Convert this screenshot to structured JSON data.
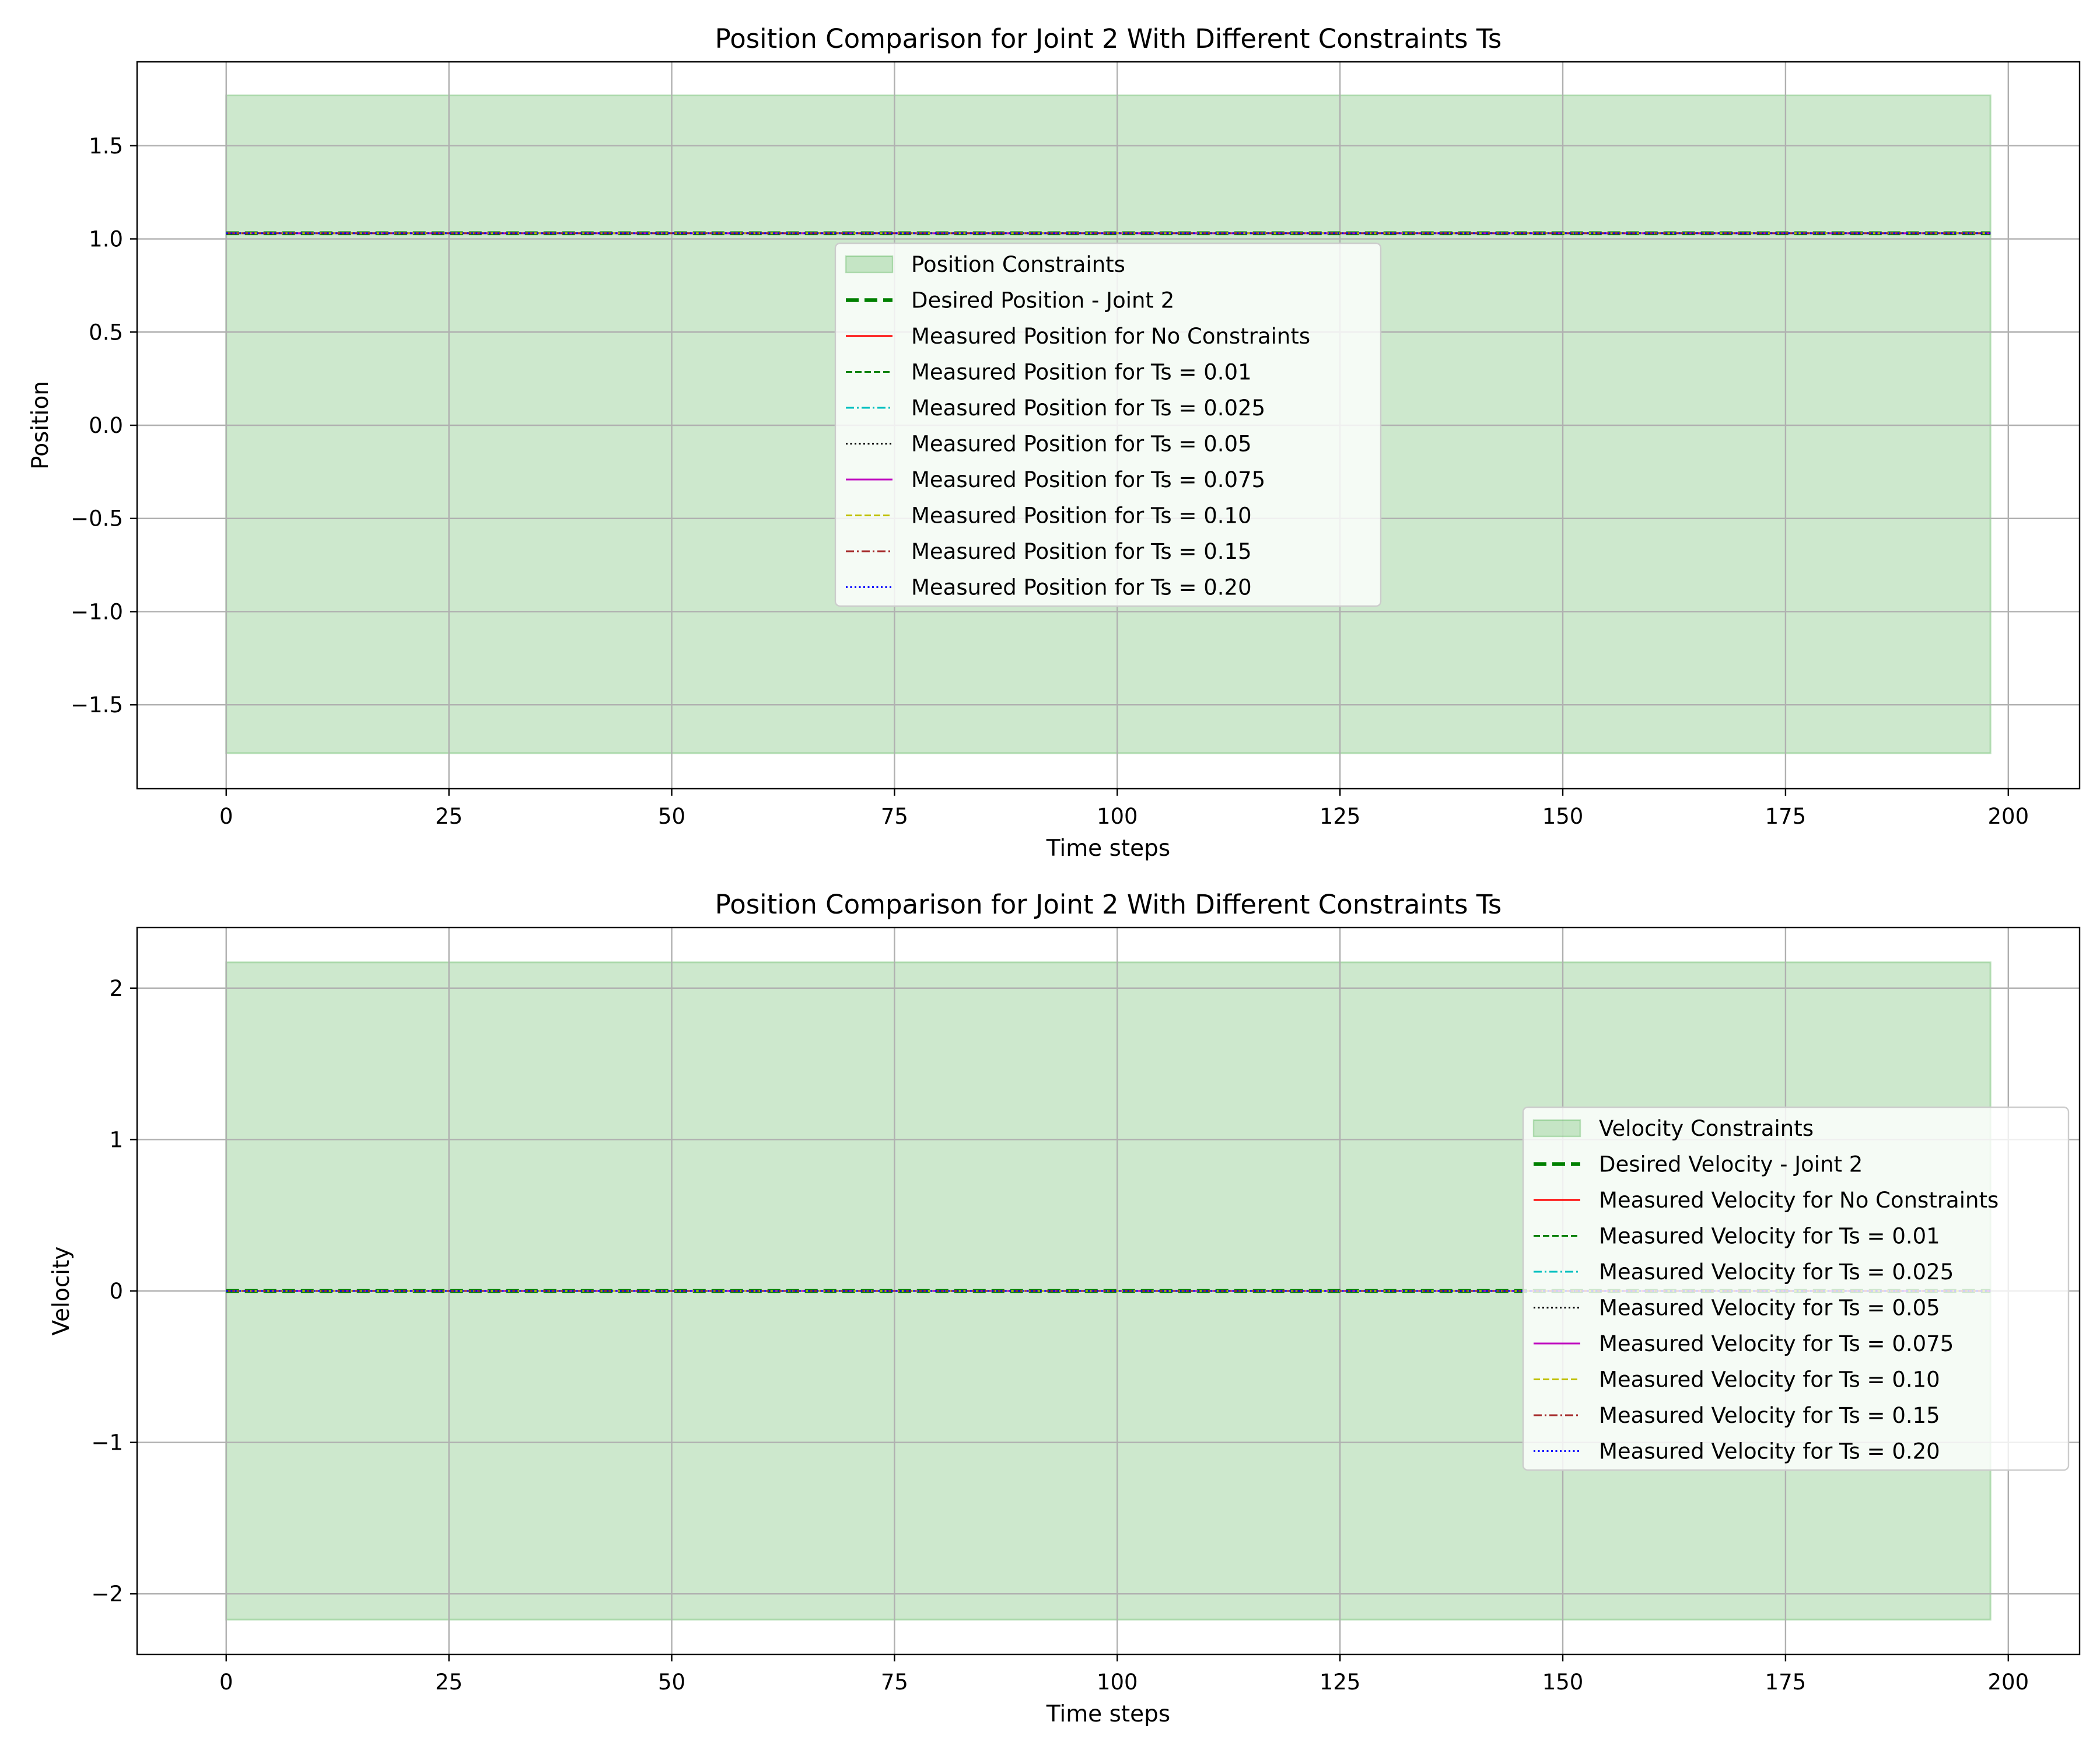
{
  "chart_data": [
    {
      "type": "line",
      "title": "Position Comparison for Joint 2 With Different Constraints Ts",
      "xlabel": "Time steps",
      "ylabel": "Position",
      "xlim": [
        -10,
        208
      ],
      "ylim": [
        -1.95,
        1.95
      ],
      "xticks": [
        0,
        25,
        50,
        75,
        100,
        125,
        150,
        175,
        200
      ],
      "xtick_labels": [
        "0",
        "25",
        "50",
        "75",
        "100",
        "125",
        "150",
        "175",
        "200"
      ],
      "yticks": [
        -1.5,
        -1.0,
        -0.5,
        0.0,
        0.5,
        1.0,
        1.5
      ],
      "ytick_labels": [
        "−1.5",
        "−1.0",
        "−0.5",
        "0.0",
        "0.5",
        "1.0",
        "1.5"
      ],
      "grid": true,
      "legend_position": "center",
      "band": {
        "name": "Position Constraints",
        "x": [
          0,
          198
        ],
        "lower": -1.76,
        "upper": 1.77,
        "color": "#2ca02c"
      },
      "series": [
        {
          "name": "Desired Position - Joint 2",
          "x": [
            0,
            198
          ],
          "values": [
            1.03,
            1.03
          ],
          "color": "#008000",
          "style": "bold-dashed"
        },
        {
          "name": "Measured Position for No Constraints",
          "x": [
            0,
            198
          ],
          "values": [
            1.03,
            1.03
          ],
          "color": "#ff0000",
          "style": "solid"
        },
        {
          "name": "Measured Position for Ts = 0.01",
          "x": [
            0,
            198
          ],
          "values": [
            1.03,
            1.03
          ],
          "color": "#008000",
          "style": "dashed"
        },
        {
          "name": "Measured Position for Ts = 0.025",
          "x": [
            0,
            198
          ],
          "values": [
            1.03,
            1.03
          ],
          "color": "#00bfbf",
          "style": "dashdot"
        },
        {
          "name": "Measured Position for Ts = 0.05",
          "x": [
            0,
            198
          ],
          "values": [
            1.03,
            1.03
          ],
          "color": "#000000",
          "style": "dotted"
        },
        {
          "name": "Measured Position for Ts = 0.075",
          "x": [
            0,
            198
          ],
          "values": [
            1.03,
            1.03
          ],
          "color": "#bf00bf",
          "style": "solid"
        },
        {
          "name": "Measured Position for Ts = 0.10",
          "x": [
            0,
            198
          ],
          "values": [
            1.03,
            1.03
          ],
          "color": "#bfbf00",
          "style": "dashed"
        },
        {
          "name": "Measured Position for Ts = 0.15",
          "x": [
            0,
            198
          ],
          "values": [
            1.03,
            1.03
          ],
          "color": "#a52a2a",
          "style": "dashdot"
        },
        {
          "name": "Measured Position for Ts = 0.20",
          "x": [
            0,
            198
          ],
          "values": [
            1.03,
            1.03
          ],
          "color": "#0000ff",
          "style": "dotted"
        }
      ]
    },
    {
      "type": "line",
      "title": "Position Comparison for Joint 2 With Different Constraints Ts",
      "xlabel": "Time steps",
      "ylabel": "Velocity",
      "xlim": [
        -10,
        208
      ],
      "ylim": [
        -2.4,
        2.4
      ],
      "xticks": [
        0,
        25,
        50,
        75,
        100,
        125,
        150,
        175,
        200
      ],
      "xtick_labels": [
        "0",
        "25",
        "50",
        "75",
        "100",
        "125",
        "150",
        "175",
        "200"
      ],
      "yticks": [
        -2,
        -1,
        0,
        1,
        2
      ],
      "ytick_labels": [
        "−2",
        "−1",
        "0",
        "1",
        "2"
      ],
      "grid": true,
      "legend_position": "center-right",
      "band": {
        "name": "Velocity Constraints",
        "x": [
          0,
          198
        ],
        "lower": -2.17,
        "upper": 2.17,
        "color": "#2ca02c"
      },
      "series": [
        {
          "name": "Desired Velocity - Joint 2",
          "x": [
            0,
            198
          ],
          "values": [
            0,
            0
          ],
          "color": "#008000",
          "style": "bold-dashed"
        },
        {
          "name": "Measured Velocity for No Constraints",
          "x": [
            0,
            198
          ],
          "values": [
            0,
            0
          ],
          "color": "#ff0000",
          "style": "solid"
        },
        {
          "name": "Measured Velocity for Ts = 0.01",
          "x": [
            0,
            198
          ],
          "values": [
            0,
            0
          ],
          "color": "#008000",
          "style": "dashed"
        },
        {
          "name": "Measured Velocity for Ts = 0.025",
          "x": [
            0,
            198
          ],
          "values": [
            0,
            0
          ],
          "color": "#00bfbf",
          "style": "dashdot"
        },
        {
          "name": "Measured Velocity for Ts = 0.05",
          "x": [
            0,
            198
          ],
          "values": [
            0,
            0
          ],
          "color": "#000000",
          "style": "dotted"
        },
        {
          "name": "Measured Velocity for Ts = 0.075",
          "x": [
            0,
            198
          ],
          "values": [
            0,
            0
          ],
          "color": "#bf00bf",
          "style": "solid"
        },
        {
          "name": "Measured Velocity for Ts = 0.10",
          "x": [
            0,
            198
          ],
          "values": [
            0,
            0
          ],
          "color": "#bfbf00",
          "style": "dashed"
        },
        {
          "name": "Measured Velocity for Ts = 0.15",
          "x": [
            0,
            198
          ],
          "values": [
            0,
            0
          ],
          "color": "#a52a2a",
          "style": "dashdot"
        },
        {
          "name": "Measured Velocity for Ts = 0.20",
          "x": [
            0,
            198
          ],
          "values": [
            0,
            0
          ],
          "color": "#0000ff",
          "style": "dotted"
        }
      ]
    }
  ]
}
